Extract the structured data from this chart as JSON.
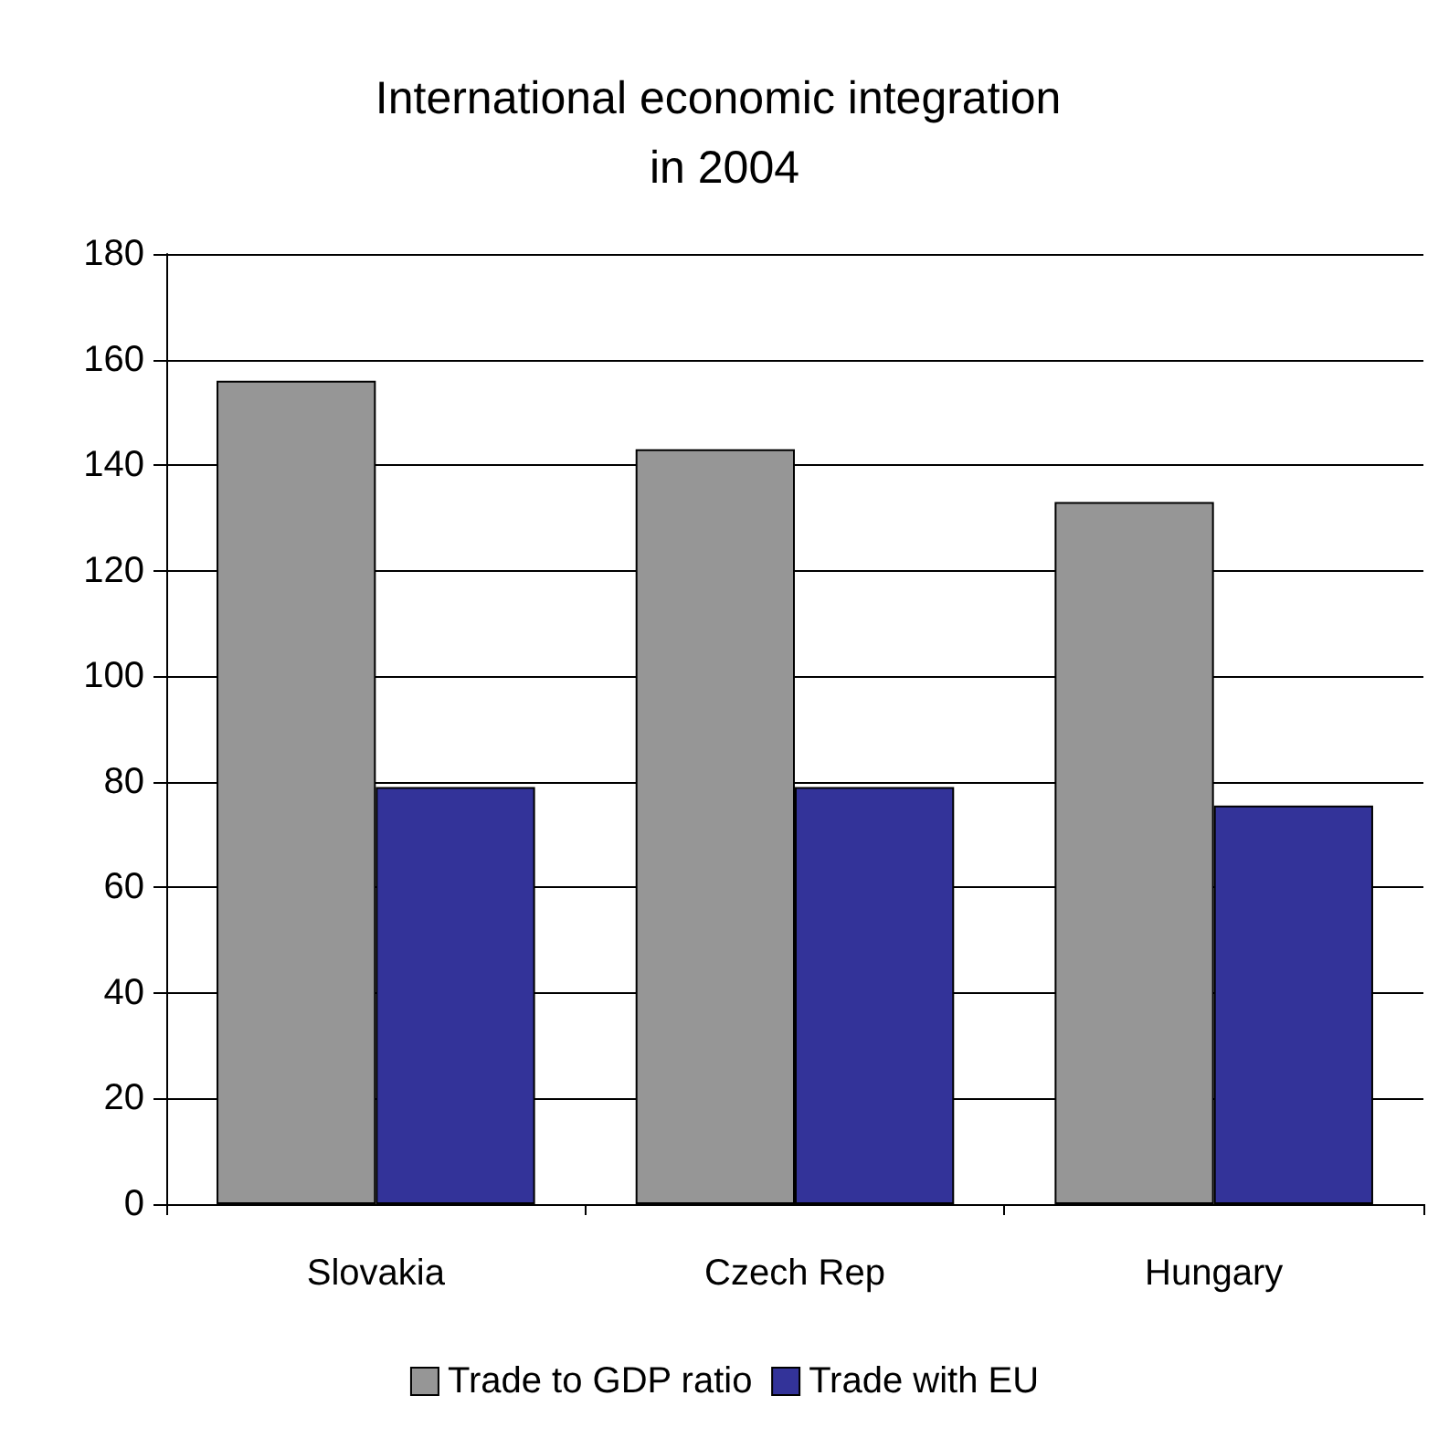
{
  "chart_data": {
    "type": "bar",
    "title": "International economic integration in 2004",
    "categories": [
      "Slovakia",
      "Czech Rep",
      "Hungary"
    ],
    "series": [
      {
        "name": "Trade to GDP ratio",
        "color": "#969696",
        "values": [
          156,
          143,
          133
        ]
      },
      {
        "name": "Trade with EU",
        "color": "#333399",
        "values": [
          79,
          79,
          75.5
        ]
      }
    ],
    "ylim": [
      0,
      180
    ],
    "yticks": [
      0,
      20,
      40,
      60,
      80,
      100,
      120,
      140,
      160,
      180
    ],
    "grid": true,
    "legend": "bottom"
  }
}
